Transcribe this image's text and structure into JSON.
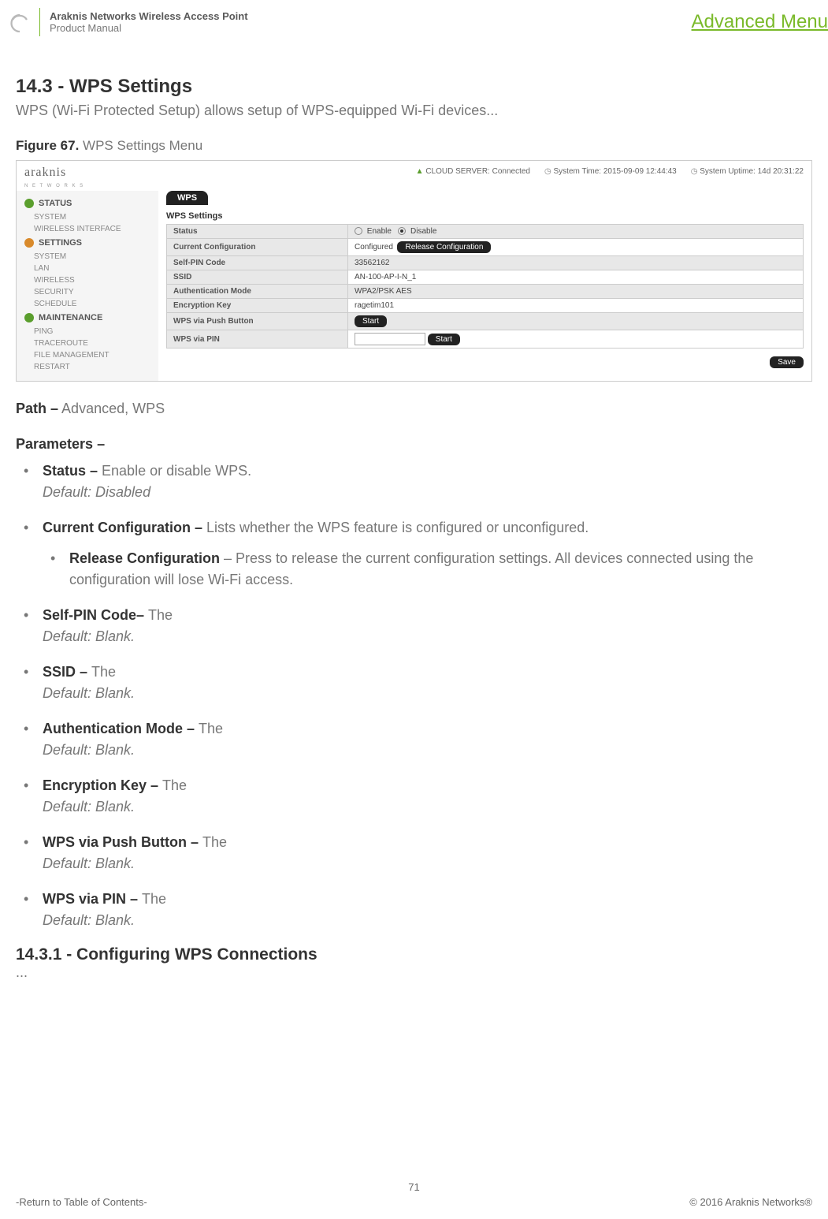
{
  "header": {
    "product_line": "Araknis Networks Wireless Access Point",
    "doc_type": "Product Manual",
    "right_link": "Advanced Menu",
    "logo_color": "#b9b9b9",
    "accent_color": "#7aba2a"
  },
  "section": {
    "number_title": "14.3 - WPS Settings",
    "desc": "WPS (Wi-Fi Protected Setup) allows setup of WPS-equipped Wi-Fi devices...",
    "figure_label": "Figure 67.",
    "figure_title": "WPS Settings Menu"
  },
  "screenshot": {
    "logo_text": "araknis",
    "logo_sub": "N E T W O R K S",
    "cloud_label": "CLOUD SERVER:",
    "cloud_status": "Connected",
    "systime_label": "System Time:",
    "systime_value": "2015-09-09 12:44:43",
    "uptime_label": "System Uptime:",
    "uptime_value": "14d 20:31:22",
    "nav": [
      {
        "type": "group",
        "label": "STATUS",
        "icon": "check",
        "icon_color": "#5a9e2d"
      },
      {
        "type": "item",
        "label": "SYSTEM"
      },
      {
        "type": "item",
        "label": "WIRELESS INTERFACE"
      },
      {
        "type": "group",
        "label": "SETTINGS",
        "icon": "gear",
        "icon_color": "#d98a2b"
      },
      {
        "type": "item",
        "label": "SYSTEM"
      },
      {
        "type": "item",
        "label": "LAN"
      },
      {
        "type": "item",
        "label": "WIRELESS"
      },
      {
        "type": "item",
        "label": "SECURITY"
      },
      {
        "type": "item",
        "label": "SCHEDULE"
      },
      {
        "type": "group",
        "label": "MAINTENANCE",
        "icon": "wrench",
        "icon_color": "#5a9e2d"
      },
      {
        "type": "item",
        "label": "PING"
      },
      {
        "type": "item",
        "label": "TRACEROUTE"
      },
      {
        "type": "item",
        "label": "FILE MANAGEMENT"
      },
      {
        "type": "item",
        "label": "RESTART"
      }
    ],
    "tab": "WPS",
    "panel_title": "WPS Settings",
    "rows": [
      {
        "label": "Status",
        "type": "radio",
        "opt1": "Enable",
        "opt2": "Disable",
        "checked": 2
      },
      {
        "label": "Current Configuration",
        "type": "btntext",
        "text": "Configured",
        "btn": "Release Configuration"
      },
      {
        "label": "Self-PIN Code",
        "type": "text",
        "text": "33562162"
      },
      {
        "label": "SSID",
        "type": "text",
        "text": "AN-100-AP-I-N_1"
      },
      {
        "label": "Authentication Mode",
        "type": "text",
        "text": "WPA2/PSK AES"
      },
      {
        "label": "Encryption Key",
        "type": "text",
        "text": "ragetim101"
      },
      {
        "label": "WPS via Push Button",
        "type": "btn",
        "btn": "Start"
      },
      {
        "label": "WPS via PIN",
        "type": "inputbtn",
        "btn": "Start"
      }
    ],
    "save_btn": "Save",
    "shaded_rows": [
      0,
      2,
      4,
      6
    ],
    "shade_color": "#e8e8e8"
  },
  "path": {
    "label": "Path –",
    "value": "Advanced, WPS"
  },
  "params_label": "Parameters –",
  "params": [
    {
      "b": "Status – ",
      "t": "Enable or disable WPS.",
      "d": "Default: Disabled"
    },
    {
      "b": "Current Configuration – ",
      "t": "Lists whether the WPS feature is configured or unconfigured.",
      "sub": [
        {
          "b": "Release Configuration",
          "t": " – Press to release the current configuration settings. All devices connected using the configuration will lose Wi-Fi access."
        }
      ]
    },
    {
      "b": "Self-PIN Code– ",
      "t": "The",
      "d": "Default: Blank."
    },
    {
      "b": "SSID – ",
      "t": "The",
      "d": "Default: Blank."
    },
    {
      "b": "Authentication Mode – ",
      "t": "The",
      "d": "Default: Blank."
    },
    {
      "b": "Encryption Key – ",
      "t": "The",
      "d": "Default: Blank."
    },
    {
      "b": "WPS via Push Button – ",
      "t": "The",
      "d": "Default: Blank."
    },
    {
      "b": "WPS via PIN – ",
      "t": "The",
      "d": "Default: Blank."
    }
  ],
  "subsection": {
    "title": "14.3.1 - Configuring WPS Connections",
    "dots": "..."
  },
  "footer": {
    "page": "71",
    "left": "-Return to Table of Contents-",
    "right": "© 2016 Araknis Networks®"
  }
}
